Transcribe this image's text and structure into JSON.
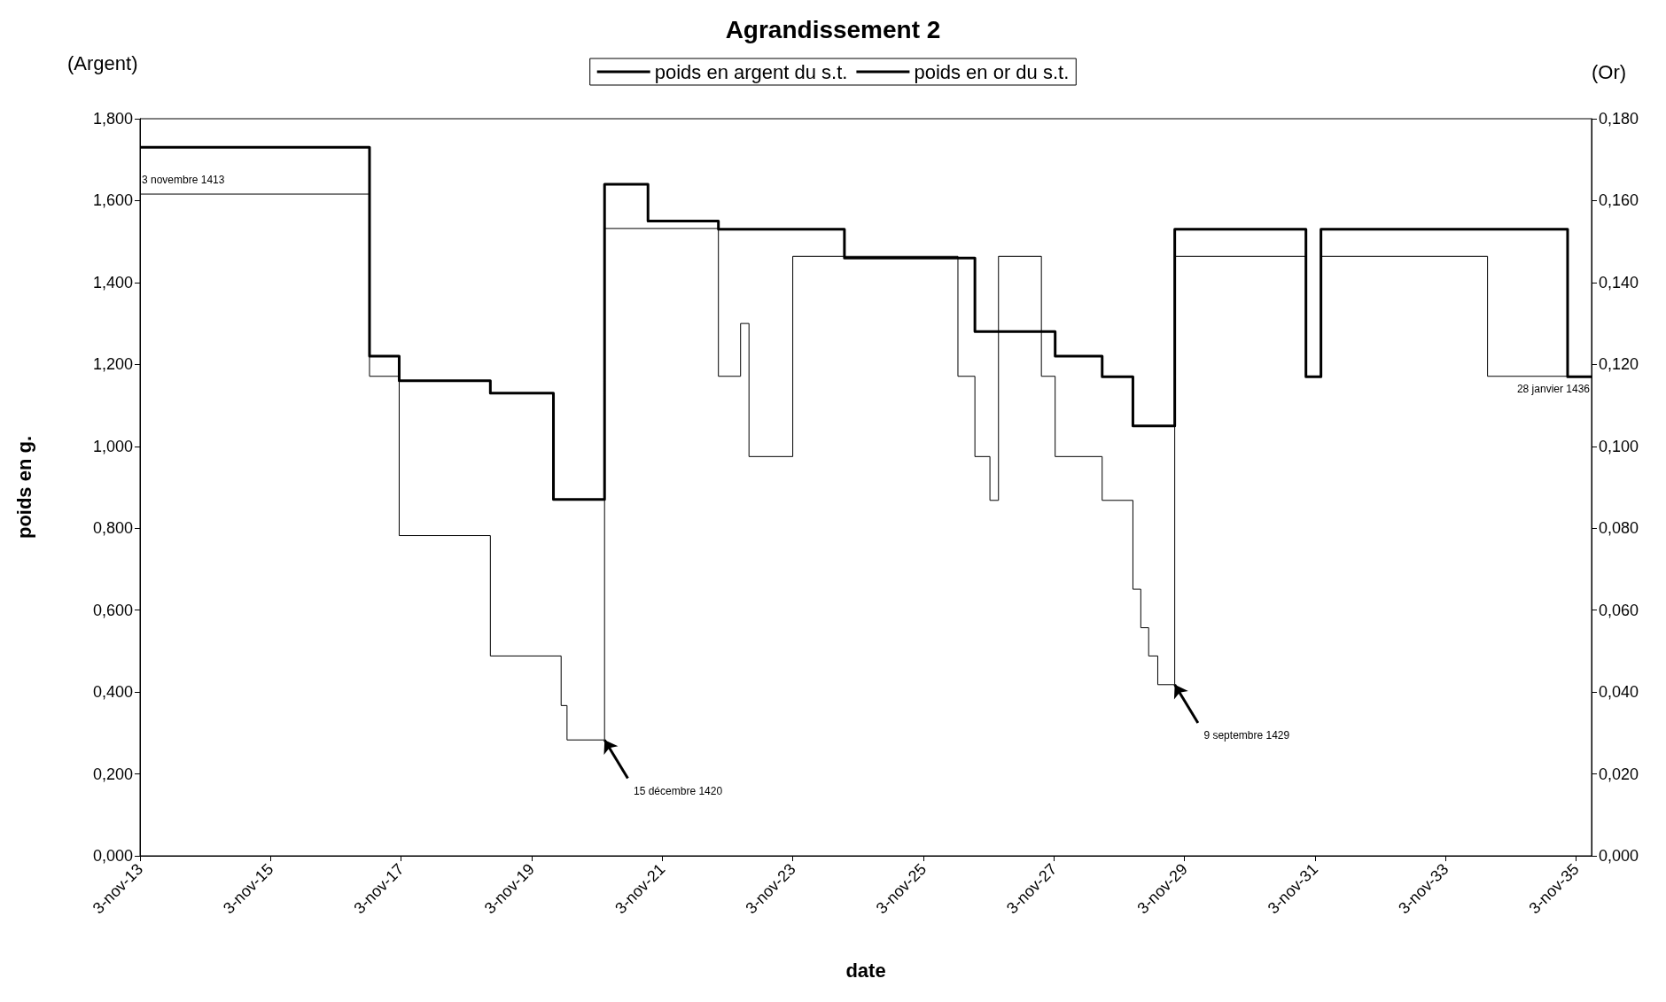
{
  "chart_data": {
    "type": "step",
    "title": "Agrandissement 2",
    "xlabel": "date",
    "ylabel": "poids en g.",
    "y2label": "(Or)",
    "legend": "top",
    "grid": false,
    "line_style": "solid",
    "marker": "none",
    "xlim": [
      "1413-11-03",
      "1436-01-28"
    ],
    "xticks": [
      {
        "value": "1413-11-03",
        "label": "3-nov-13"
      },
      {
        "value": "1415-11-03",
        "label": "3-nov-15"
      },
      {
        "value": "1417-11-03",
        "label": "3-nov-17"
      },
      {
        "value": "1419-11-03",
        "label": "3-nov-19"
      },
      {
        "value": "1421-11-03",
        "label": "3-nov-21"
      },
      {
        "value": "1423-11-03",
        "label": "3-nov-23"
      },
      {
        "value": "1425-11-03",
        "label": "3-nov-25"
      },
      {
        "value": "1427-11-03",
        "label": "3-nov-27"
      },
      {
        "value": "1429-11-03",
        "label": "3-nov-29"
      },
      {
        "value": "1431-11-03",
        "label": "3-nov-31"
      },
      {
        "value": "1433-11-03",
        "label": "3-nov-33"
      },
      {
        "value": "1435-11-03",
        "label": "3-nov-35"
      }
    ],
    "ylim": [
      0,
      1.8
    ],
    "yticks": [
      {
        "value": 0,
        "label": "0,000"
      },
      {
        "value": 0.2,
        "label": "0,200"
      },
      {
        "value": 0.4,
        "label": "0,400"
      },
      {
        "value": 0.6,
        "label": "0,600"
      },
      {
        "value": 0.8,
        "label": "0,800"
      },
      {
        "value": 1.0,
        "label": "1,000"
      },
      {
        "value": 1.2,
        "label": "1,200"
      },
      {
        "value": 1.4,
        "label": "1,400"
      },
      {
        "value": 1.6,
        "label": "1,600"
      },
      {
        "value": 1.8,
        "label": "1,800"
      }
    ],
    "y2lim": [
      0,
      0.18
    ],
    "y2ticks": [
      {
        "value": 0,
        "label": "0,000"
      },
      {
        "value": 0.02,
        "label": "0,020"
      },
      {
        "value": 0.04,
        "label": "0,040"
      },
      {
        "value": 0.06,
        "label": "0,060"
      },
      {
        "value": 0.08,
        "label": "0,080"
      },
      {
        "value": 0.1,
        "label": "0,100"
      },
      {
        "value": 0.12,
        "label": "0,120"
      },
      {
        "value": 0.14,
        "label": "0,140"
      },
      {
        "value": 0.16,
        "label": "0,160"
      },
      {
        "value": 0.18,
        "label": "0,180"
      }
    ],
    "series": [
      {
        "name": "poids en argent du s.t.",
        "color": "#000000",
        "x": [
          "1413-11-03",
          "1417-05-10",
          "1417-10-23",
          "1419-03-17",
          "1420-04-16",
          "1420-05-19",
          "1420-12-15",
          "1422-09-13",
          "1423-01-15",
          "1423-03-03",
          "1423-11-03",
          "1426-05-15",
          "1426-08-18",
          "1426-11-10",
          "1426-12-28",
          "1427-08-25",
          "1427-11-10",
          "1428-07-30",
          "1429-01-18",
          "1429-03-03",
          "1429-04-16",
          "1429-06-06",
          "1429-09-09",
          "1431-09-13",
          "1431-12-06",
          "1434-06-25",
          "1436-01-28"
        ],
        "values": [
          1.616,
          1.171,
          0.782,
          0.488,
          0.367,
          0.283,
          1.532,
          1.171,
          1.3,
          0.975,
          1.464,
          1.171,
          0.975,
          0.868,
          1.464,
          1.171,
          0.975,
          0.868,
          0.651,
          0.557,
          0.488,
          0.418,
          1.464,
          1.171,
          1.464,
          1.171,
          1.171
        ]
      },
      {
        "name": "poids en or du s.t.",
        "color": "#000000",
        "axis": "y2",
        "x": [
          "1413-11-03",
          "1417-05-10",
          "1417-10-23",
          "1419-03-17",
          "1420-03-04",
          "1420-12-15",
          "1421-08-15",
          "1422-09-13",
          "1424-08-18",
          "1426-08-18",
          "1427-11-10",
          "1428-07-30",
          "1429-01-18",
          "1429-09-09",
          "1431-09-13",
          "1431-12-06",
          "1435-09-16",
          "1436-01-28"
        ],
        "values": [
          0.173,
          0.122,
          0.116,
          0.113,
          0.087,
          0.164,
          0.155,
          0.153,
          0.146,
          0.128,
          0.122,
          0.117,
          0.105,
          0.153,
          0.117,
          0.153,
          0.117,
          0.117
        ]
      }
    ],
    "annotations": [
      "(Argent)",
      {
        "text": "3 novembre 1413",
        "x": "1413-11-03",
        "y": 1.616
      },
      {
        "text": "15 décembre 1420",
        "x": "1420-12-15",
        "y": 0.283
      },
      {
        "text": "9 septembre 1429",
        "x": "1429-09-09",
        "y": 0.418
      },
      {
        "text": "28 janvier 1436",
        "x": "1436-01-28",
        "y": 1.171
      }
    ]
  }
}
